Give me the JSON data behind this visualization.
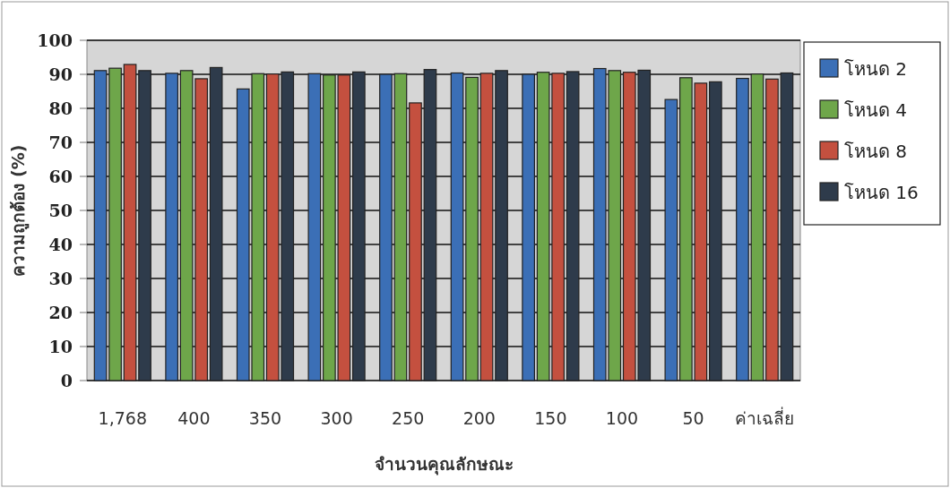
{
  "chart_data": {
    "type": "bar",
    "xlabel": "จำนวนคุณลักษณะ",
    "ylabel": "ความถูกต้อง (%)",
    "categories": [
      "1,768",
      "400",
      "350",
      "300",
      "250",
      "200",
      "150",
      "100",
      "50",
      "ค่าเฉลี่ย"
    ],
    "series": [
      {
        "name": "โหนด 2",
        "color": "#3b6fb6",
        "values": [
          91.1,
          90.3,
          85.7,
          90.2,
          90.0,
          90.4,
          90.0,
          91.7,
          82.6,
          88.8
        ]
      },
      {
        "name": "โหนด 4",
        "color": "#6ea64a",
        "values": [
          91.8,
          91.1,
          90.2,
          89.8,
          90.2,
          89.1,
          90.6,
          91.1,
          89.0,
          90.1
        ]
      },
      {
        "name": "โหนด 8",
        "color": "#c4503f",
        "values": [
          92.9,
          88.7,
          90.1,
          89.8,
          81.6,
          90.3,
          90.3,
          90.6,
          87.4,
          88.6
        ]
      },
      {
        "name": "โหนด 16",
        "color": "#2e3b4b",
        "values": [
          91.1,
          92.0,
          90.7,
          90.7,
          91.4,
          91.1,
          90.8,
          91.2,
          87.8,
          90.4
        ]
      }
    ],
    "ylim": [
      0,
      100
    ],
    "yticks": [
      0,
      10,
      20,
      30,
      40,
      50,
      60,
      70,
      80,
      90,
      100
    ],
    "grid": "y",
    "legend": "right"
  }
}
